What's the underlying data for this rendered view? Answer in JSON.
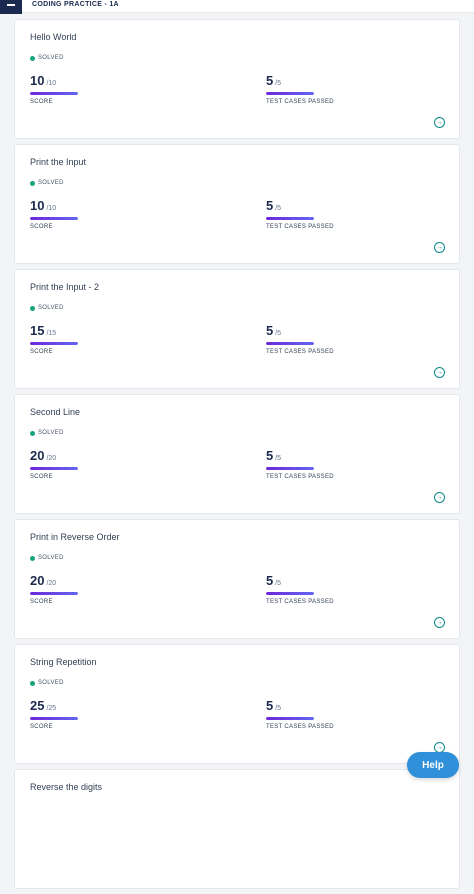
{
  "header": {
    "title": "CODING PRACTICE - 1A",
    "menu_icon": "sidebar-toggle-icon"
  },
  "labels": {
    "score": "SCORE",
    "tests": "TEST CASES PASSED"
  },
  "problems": [
    {
      "name": "Hello World",
      "status": "SOLVED",
      "score": "10",
      "score_max": "/10",
      "tests": "5",
      "tests_max": "/5",
      "score_pct": 100,
      "tests_pct": 100
    },
    {
      "name": "Print the Input",
      "status": "SOLVED",
      "score": "10",
      "score_max": "/10",
      "tests": "5",
      "tests_max": "/5",
      "score_pct": 100,
      "tests_pct": 100
    },
    {
      "name": "Print the Input - 2",
      "status": "SOLVED",
      "score": "15",
      "score_max": "/15",
      "tests": "5",
      "tests_max": "/5",
      "score_pct": 100,
      "tests_pct": 100
    },
    {
      "name": "Second Line",
      "status": "SOLVED",
      "score": "20",
      "score_max": "/20",
      "tests": "5",
      "tests_max": "/5",
      "score_pct": 100,
      "tests_pct": 100
    },
    {
      "name": "Print in Reverse Order",
      "status": "SOLVED",
      "score": "20",
      "score_max": "/20",
      "tests": "5",
      "tests_max": "/5",
      "score_pct": 100,
      "tests_pct": 100
    },
    {
      "name": "String Repetition",
      "status": "SOLVED",
      "score": "25",
      "score_max": "/25",
      "tests": "5",
      "tests_max": "/5",
      "score_pct": 100,
      "tests_pct": 100
    },
    {
      "name": "Reverse the digits"
    }
  ],
  "help": {
    "label": "Help"
  },
  "colors": {
    "accent": "#2f8fd8",
    "solved": "#16a37f",
    "bar": "#6d28d9"
  }
}
